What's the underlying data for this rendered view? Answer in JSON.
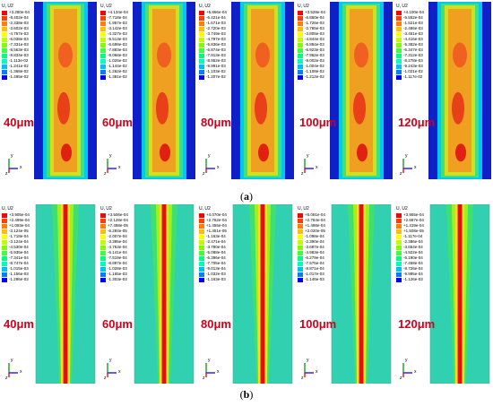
{
  "row_a": {
    "caption_open": "(",
    "caption_letter": "a",
    "caption_close": ")",
    "panels": [
      {
        "size_label": "40μm",
        "legend_title": "U, U2",
        "legend_values": [
          "+3.280e-04",
          "-9.402e-04",
          "-2.338e-03",
          "-3.602e-03",
          "-4.767e-03",
          "-6.038e-03",
          "-7.331e-03",
          "-8.563e-03",
          "-9.834e-03",
          "-1.113e-02",
          "-1.241e-02",
          "-1.368e-02",
          "-1.495e-02"
        ]
      },
      {
        "size_label": "60μm",
        "legend_title": "U, U2",
        "legend_values": [
          "+4.134e-04",
          "-7.718e-04",
          "-1.957e-03",
          "-3.142e-03",
          "-4.327e-03",
          "-5.513e-03",
          "-6.698e-03",
          "-7.883e-03",
          "-9.068e-03",
          "-1.025e-02",
          "-1.144e-02",
          "-1.262e-02",
          "-1.381e-02"
        ]
      },
      {
        "size_label": "80μm",
        "legend_title": "U, U2",
        "legend_values": [
          "+5.866e-04",
          "-6.421e-04",
          "-1.671e-03",
          "-2.720e-03",
          "-3.749e-03",
          "-4.797e-03",
          "-5.836e-03",
          "-6.874e-03",
          "-7.913e-03",
          "-8.952e-03",
          "-9.991e-03",
          "-1.103e-02",
          "-1.207e-02"
        ]
      },
      {
        "size_label": "100μm",
        "legend_title": "U, U2",
        "legend_values": [
          "+3.528e-04",
          "-6.860e-04",
          "-1.726e-03",
          "-2.765e-03",
          "-3.805e-03",
          "-4.844e-03",
          "-5.884e-03",
          "-6.923e-03",
          "-7.962e-03",
          "-9.002e-03",
          "-1.004e-02",
          "-1.108e-02",
          "-1.212e-02"
        ]
      },
      {
        "size_label": "120μm",
        "legend_title": "U, U2",
        "legend_values": [
          "+4.100e-04",
          "-5.552e-04",
          "-1.521e-03",
          "-2.486e-03",
          "-3.451e-03",
          "-4.416e-03",
          "-5.382e-03",
          "-6.347e-03",
          "-7.312e-03",
          "-8.278e-03",
          "-9.243e-03",
          "-1.021e-02",
          "-1.117e-02"
        ]
      }
    ]
  },
  "row_b": {
    "caption_open": "(",
    "caption_letter": "b",
    "caption_close": ")",
    "panels": [
      {
        "size_label": "40μm",
        "legend_title": "U, U2",
        "legend_values": [
          "+3.905e-04",
          "+2.499e-04",
          "+1.093e-04",
          "-3.124e-05",
          "-1.718e-04",
          "-3.124e-04",
          "-4.530e-04",
          "-5.935e-04",
          "-7.341e-04",
          "-8.747e-04",
          "-1.015e-03",
          "-1.156e-03",
          "-1.296e-03"
        ]
      },
      {
        "size_label": "60μm",
        "legend_title": "U, U2",
        "legend_values": [
          "+3.506e-04",
          "+2.128e-04",
          "+7.498e-05",
          "-6.284e-05",
          "-2.007e-04",
          "-3.385e-04",
          "-4.763e-04",
          "-6.141e-04",
          "-7.519e-04",
          "-8.897e-04",
          "-1.028e-03",
          "-1.165e-03",
          "-1.303e-03"
        ]
      },
      {
        "size_label": "80μm",
        "legend_title": "U, U2",
        "legend_values": [
          "+4.070e-04",
          "+2.762e-04",
          "+1.455e-04",
          "+1.451e-05",
          "-1.163e-04",
          "-2.471e-04",
          "-3.780e-04",
          "-5.088e-04",
          "-6.396e-04",
          "-7.705e-04",
          "-9.013e-04",
          "-1.032e-03",
          "-1.163e-03"
        ]
      },
      {
        "size_label": "100μm",
        "legend_title": "U, U2",
        "legend_values": [
          "+6.091e-04",
          "+2.784e-04",
          "+1.498e-04",
          "+2.020e-05",
          "-1.098e-04",
          "-2.390e-04",
          "-3.687e-04",
          "-4.983e-04",
          "-6.279e-04",
          "-7.575e-04",
          "-8.871e-04",
          "-1.017e-03",
          "-1.146e-03"
        ]
      },
      {
        "size_label": "120μm",
        "legend_title": "U, U2",
        "legend_values": [
          "+3.955e-04",
          "+2.687e-04",
          "+1.419e-04",
          "+1.508e-05",
          "-1.117e-04",
          "-2.386e-04",
          "-3.654e-04",
          "-4.922e-04",
          "-6.190e-04",
          "-7.458e-04",
          "-8.726e-04",
          "-9.995e-04",
          "-1.126e-03"
        ]
      }
    ]
  },
  "colorbar": [
    "#ff0000",
    "#ff4000",
    "#ff8000",
    "#ffbf00",
    "#ffff00",
    "#bfff00",
    "#80ff00",
    "#40ff40",
    "#00ff80",
    "#00ffbf",
    "#00bfff",
    "#0080ff",
    "#0000ff"
  ],
  "triad": {
    "x": "x",
    "y": "y",
    "z": "z"
  }
}
